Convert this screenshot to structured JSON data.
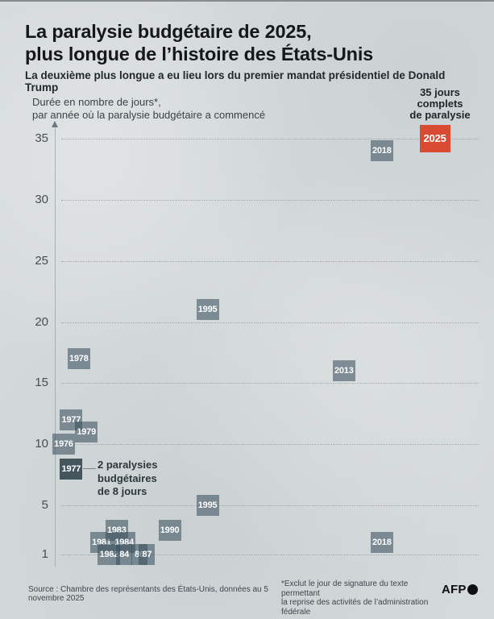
{
  "header": {
    "title_line1": "La paralysie budgétaire de 2025,",
    "title_line2": "plus longue de l’histoire des États-Unis",
    "subtitle": "La deuxième plus longue a eu lieu lors du premier mandat présidentiel de Donald Trump"
  },
  "chart": {
    "axis_desc_line1": "Durée en nombre de jours*,",
    "axis_desc_line2": "par année où la paralysie budgétaire a commencé",
    "callout_35": {
      "line1": "35 jours",
      "line2": "complets",
      "line3": "de paralysie"
    },
    "annotation_8days": {
      "line1": "2 paralysies",
      "line2": "budgétaires",
      "line3": "de 8 jours"
    }
  },
  "colors": {
    "accent_red": "#d84a31",
    "box_gray": "#7d8c96",
    "box_dark": "#44555e",
    "background": "#d4d9da"
  },
  "chart_data": {
    "type": "scatter",
    "title": "La paralysie budgétaire de 2025, plus longue de l’histoire des États-Unis",
    "subtitle": "La deuxième plus longue a eu lieu lors du premier mandat présidentiel de Donald Trump",
    "ylabel": "Durée en nombre de jours*, par année où la paralysie budgétaire a commencé",
    "xlabel": "",
    "y_ticks": [
      35,
      30,
      25,
      20,
      15,
      10,
      5,
      1
    ],
    "ylim": [
      1,
      35
    ],
    "x_range": [
      1976,
      2025
    ],
    "grid": "dotted-horizontal",
    "points": [
      {
        "year": 1976,
        "days": 10,
        "label": "1976"
      },
      {
        "year": 1977,
        "days": 12,
        "label": "1977"
      },
      {
        "year": 1977,
        "days": 8,
        "label": "1977",
        "dark": true,
        "annotation": "2 paralysies budgétaires de 8 jours"
      },
      {
        "year": 1978,
        "days": 17,
        "label": "1978"
      },
      {
        "year": 1979,
        "days": 11,
        "label": "1979"
      },
      {
        "year": 1981,
        "days": 2,
        "label": "1981"
      },
      {
        "year": 1982,
        "days": 1,
        "label": "1982"
      },
      {
        "year": 1983,
        "days": 3,
        "label": "1983"
      },
      {
        "year": 1984,
        "days": 2,
        "label": "1984"
      },
      {
        "year": 1984,
        "days": 1,
        "label": "84"
      },
      {
        "year": 1986,
        "days": 1,
        "label": "86"
      },
      {
        "year": 1987,
        "days": 1,
        "label": "87"
      },
      {
        "year": 1990,
        "days": 3,
        "label": "1990"
      },
      {
        "year": 1995,
        "days": 21,
        "label": "1995"
      },
      {
        "year": 1995,
        "days": 5,
        "label": "1995"
      },
      {
        "year": 2013,
        "days": 16,
        "label": "2013"
      },
      {
        "year": 2018,
        "days": 34,
        "label": "2018"
      },
      {
        "year": 2018,
        "days": 2,
        "label": "2018"
      },
      {
        "year": 2025,
        "days": 35,
        "label": "2025",
        "highlight": true
      }
    ]
  },
  "footer": {
    "source": "Source : Chambre des représentants des États-Unis, données au 5 novembre 2025",
    "note_line1": "*Exclut le jour de signature du texte permettant",
    "note_line2": "la reprise des activités de l’administration fédérale",
    "afp": "AFP"
  }
}
